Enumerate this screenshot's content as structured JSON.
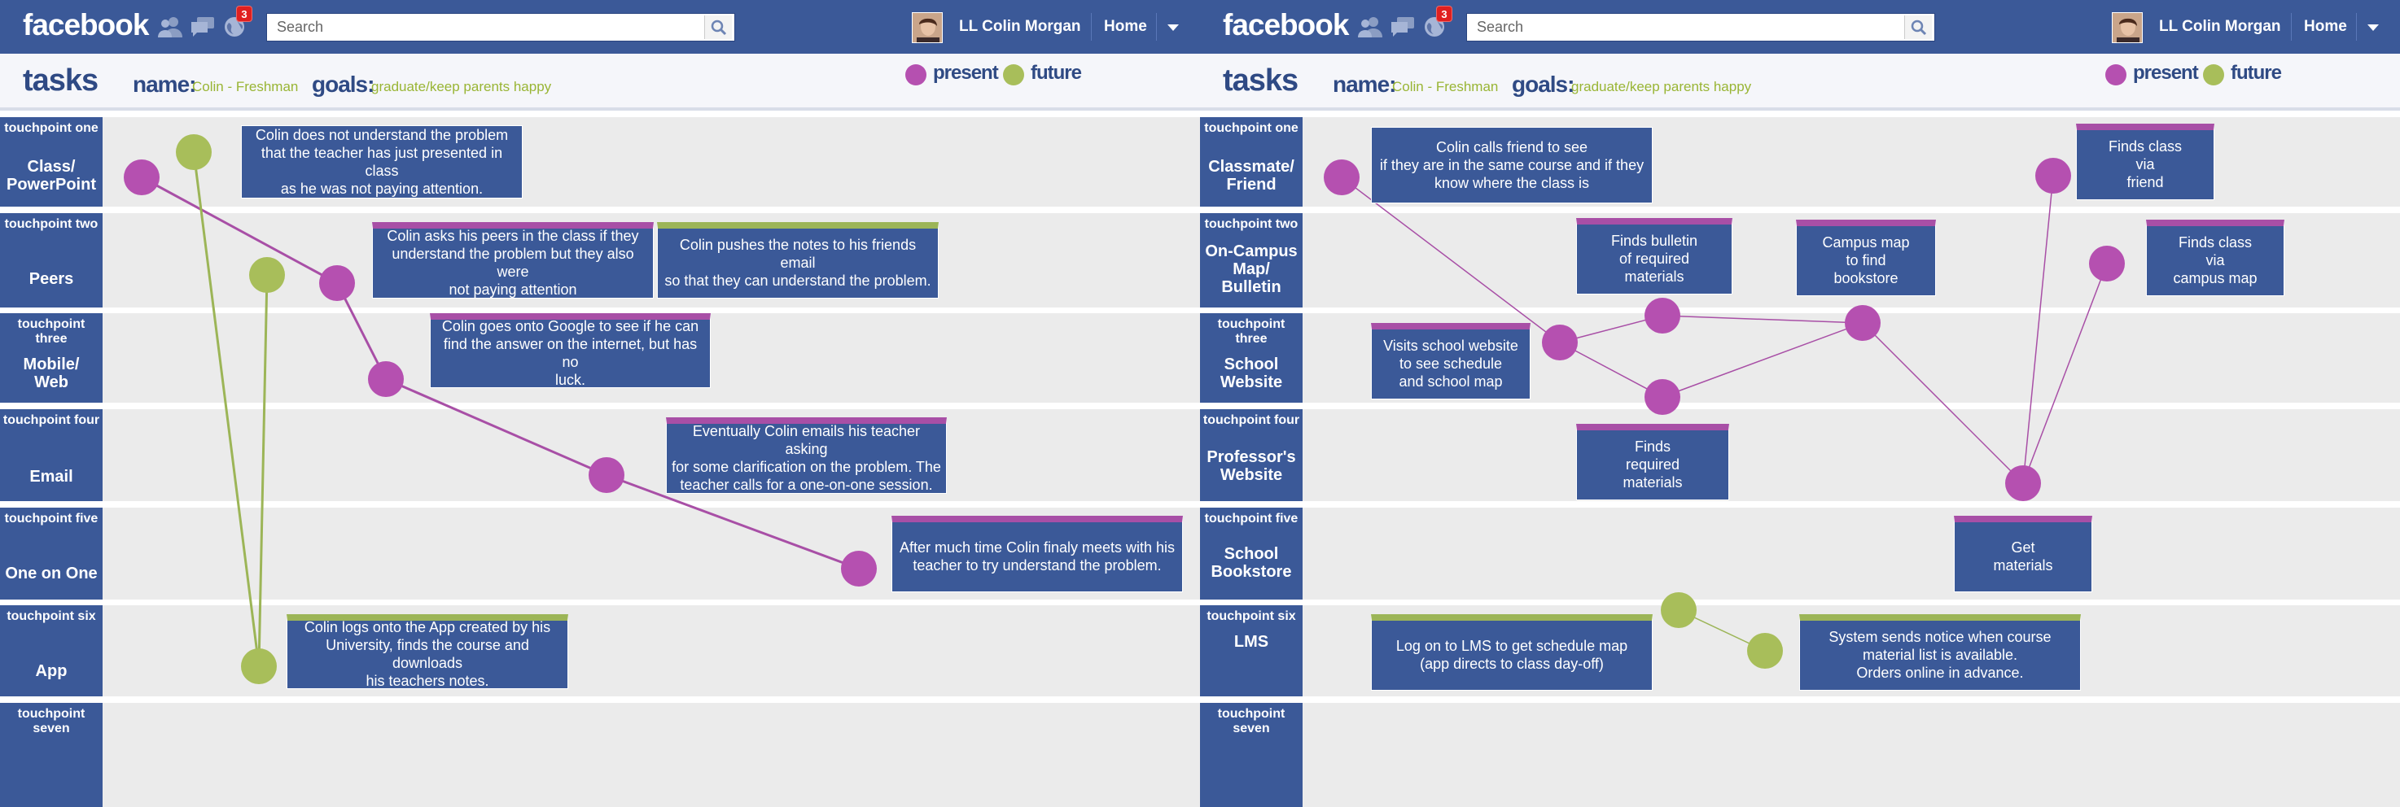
{
  "colors": {
    "fb_blue": "#3b5998",
    "present": "#b550b0",
    "future": "#a8be5a",
    "present_line": "#a84fa6",
    "future_line": "#9cb557"
  },
  "facebook_bar": {
    "logo": "facebook",
    "search_placeholder": "Search",
    "notification_count": "3",
    "user_name": "LL Colin Morgan",
    "home_label": "Home",
    "icons": [
      "friends-icon",
      "messages-icon",
      "globe-notifications-icon",
      "search-icon",
      "avatar",
      "dropdown-caret-icon"
    ]
  },
  "header": {
    "tasks_label": "tasks",
    "name_label": "name:",
    "name_value": "Colin - Freshman",
    "goals_label": "goals:",
    "goals_value": "graduate/keep parents happy"
  },
  "legend": [
    {
      "label": "present",
      "color": "#b550b0"
    },
    {
      "label": "future",
      "color": "#a8be5a"
    }
  ],
  "left": {
    "touchpoints": [
      {
        "number": "touchpoint one",
        "name": "Class/\nPowerPoint"
      },
      {
        "number": "touchpoint two",
        "name": "Peers"
      },
      {
        "number": "touchpoint three",
        "name": "Mobile/\nWeb"
      },
      {
        "number": "touchpoint four",
        "name": "Email"
      },
      {
        "number": "touchpoint five",
        "name": "One on One"
      },
      {
        "number": "touchpoint six",
        "name": "App"
      },
      {
        "number": "touchpoint seven",
        "name": ""
      }
    ],
    "cards": [
      {
        "text": "Colin does not understand the problem\nthat the teacher has just presented in class\nas he was not paying attention.",
        "accent": "none"
      },
      {
        "text": "Colin asks his peers in the class if they\nunderstand the problem but they also were\nnot paying attention",
        "accent": "present"
      },
      {
        "text": "Colin pushes the notes to his friends email\nso that they can understand the problem.",
        "accent": "future"
      },
      {
        "text": "Colin goes onto Google to see if he can\nfind the answer on the internet, but has no\nluck.",
        "accent": "present"
      },
      {
        "text": "Eventually Colin emails his teacher asking\nfor some clarification on the problem. The\nteacher calls for a one-on-one session.",
        "accent": "present"
      },
      {
        "text": "After much time Colin finaly meets with his\nteacher to try understand the problem.",
        "accent": "present"
      },
      {
        "text": "Colin logs onto the App created by his\nUniversity, finds the course and downloads\nhis teachers notes.",
        "accent": "future"
      }
    ]
  },
  "right": {
    "touchpoints": [
      {
        "number": "touchpoint one",
        "name": "Classmate/\nFriend"
      },
      {
        "number": "touchpoint two",
        "name": "On-Campus\nMap/\nBulletin"
      },
      {
        "number": "touchpoint three",
        "name": "School\nWebsite"
      },
      {
        "number": "touchpoint four",
        "name": "Professor's\nWebsite"
      },
      {
        "number": "touchpoint five",
        "name": "School\nBookstore"
      },
      {
        "number": "touchpoint six",
        "name": "LMS"
      },
      {
        "number": "touchpoint seven",
        "name": ""
      }
    ],
    "cards": [
      {
        "text": "Colin calls friend to see\nif they are in the same course and if they\nknow where the class is",
        "accent": "none"
      },
      {
        "text": "Finds bulletin\nof required\nmaterials",
        "accent": "present"
      },
      {
        "text": "Campus map\nto find\nbookstore",
        "accent": "present"
      },
      {
        "text": "Finds class\nvia\nfriend",
        "accent": "present"
      },
      {
        "text": "Finds class\nvia\ncampus map",
        "accent": "present"
      },
      {
        "text": "Visits school website\nto see schedule\nand school map",
        "accent": "present"
      },
      {
        "text": "Finds\nrequired\nmaterials",
        "accent": "present"
      },
      {
        "text": "Get\nmaterials",
        "accent": "present"
      },
      {
        "text": "Log on to LMS to get schedule map\n(app directs to class day-off)",
        "accent": "future"
      },
      {
        "text": "System sends notice when course\nmaterial list is available.\nOrders online in advance.",
        "accent": "future"
      }
    ]
  }
}
